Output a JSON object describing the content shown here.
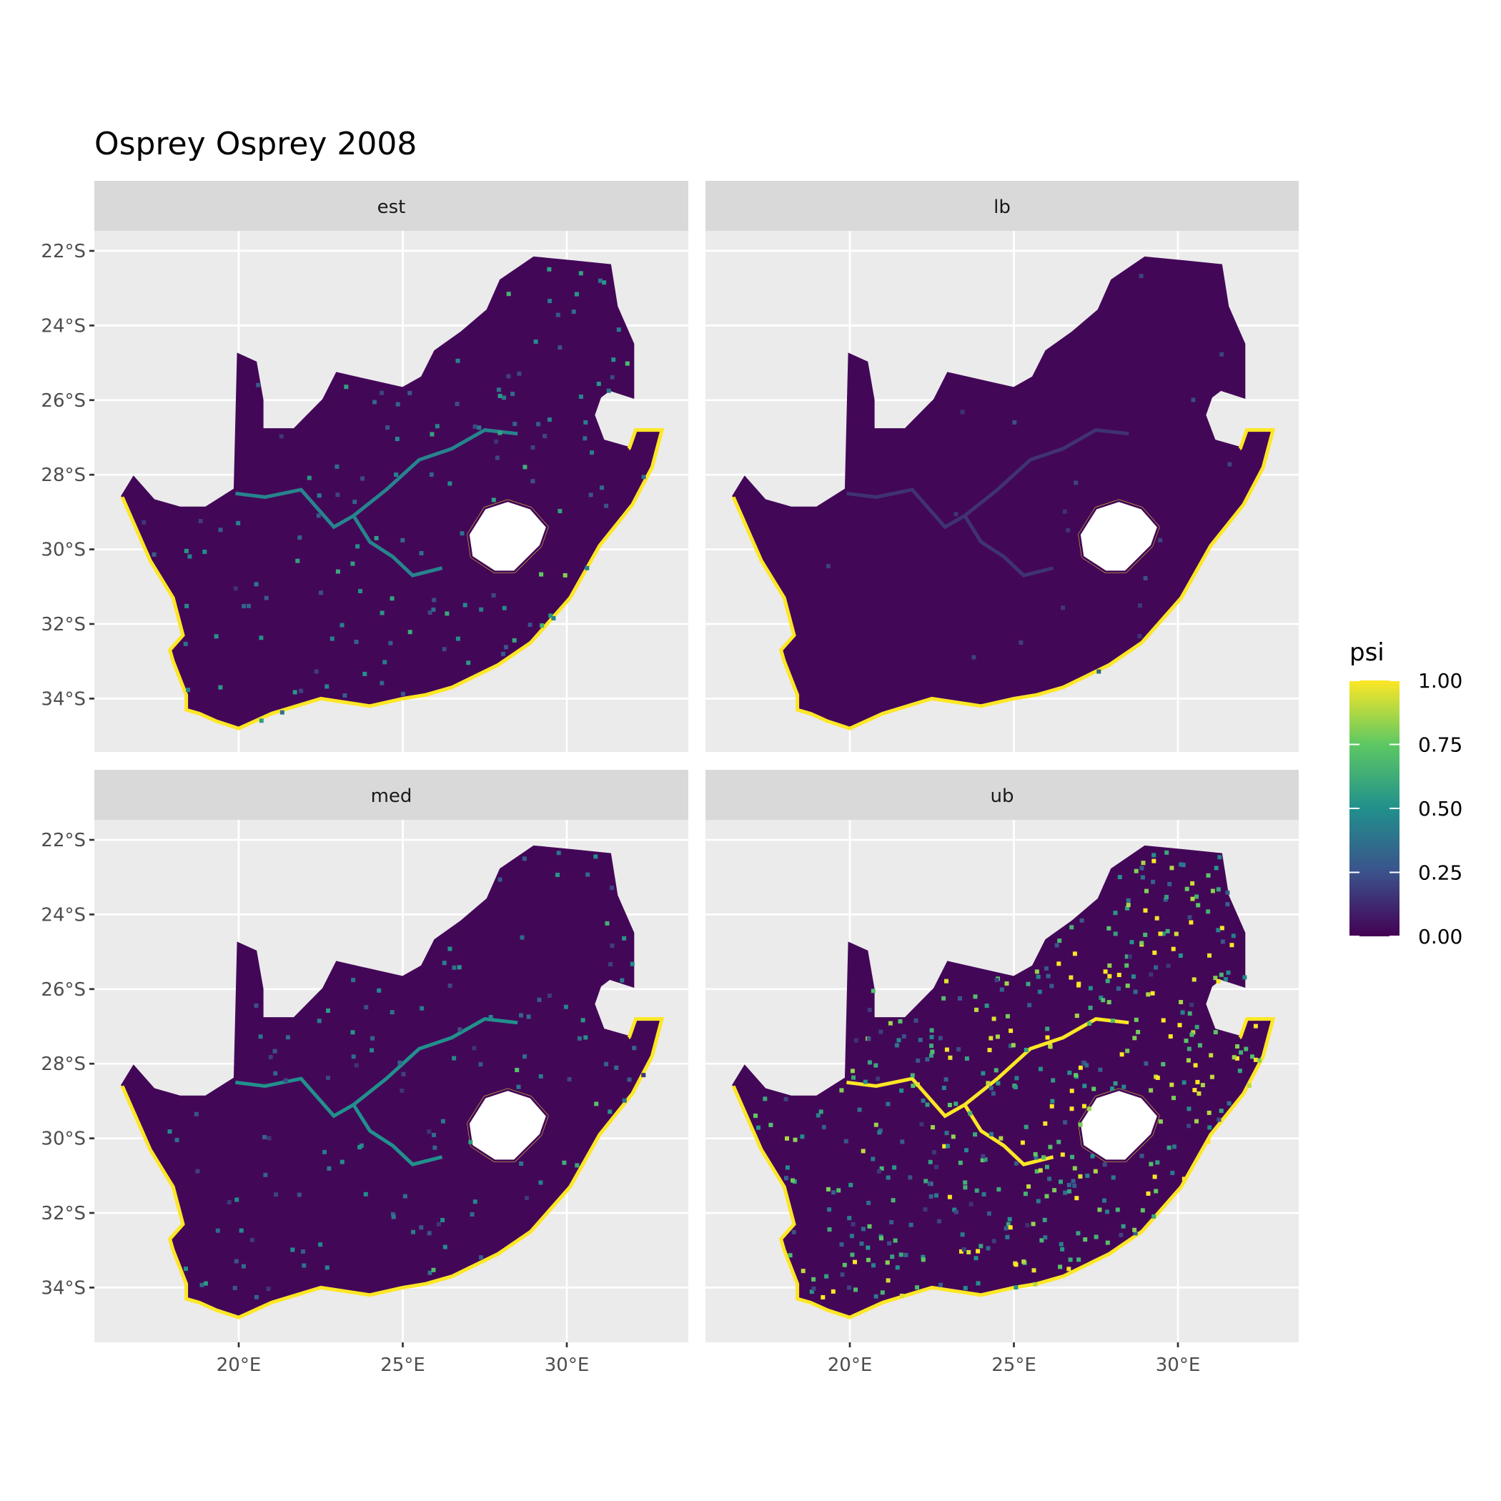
{
  "chart_data": {
    "type": "heatmap",
    "title": "Osprey Osprey 2008",
    "facets": [
      "est",
      "lb",
      "med",
      "ub"
    ],
    "x_ticks": [
      20,
      25,
      30
    ],
    "x_tick_labels": [
      "20°E",
      "25°E",
      "30°E"
    ],
    "y_ticks": [
      -22,
      -24,
      -26,
      -28,
      -30,
      -32,
      -34
    ],
    "y_tick_labels": [
      "22°S",
      "24°S",
      "26°S",
      "28°S",
      "30°S",
      "32°S",
      "34°S"
    ],
    "xlim": [
      15.6,
      33.7
    ],
    "ylim": [
      -35.4,
      -21.5
    ],
    "grid": true,
    "legend": {
      "title": "psi",
      "placement": "right",
      "range": [
        0,
        1
      ],
      "tick_values": [
        1.0,
        0.75,
        0.5,
        0.25,
        0.0
      ],
      "tick_labels": [
        "1.00",
        "0.75",
        "0.50",
        "0.25",
        "0.00"
      ],
      "palette": [
        "#440154",
        "#3b528b",
        "#21908c",
        "#5dc863",
        "#fde725"
      ]
    },
    "colors": {
      "panel_bg": "#ebebeb",
      "strip_bg": "#d9d9d9",
      "grid": "#ffffff"
    }
  }
}
